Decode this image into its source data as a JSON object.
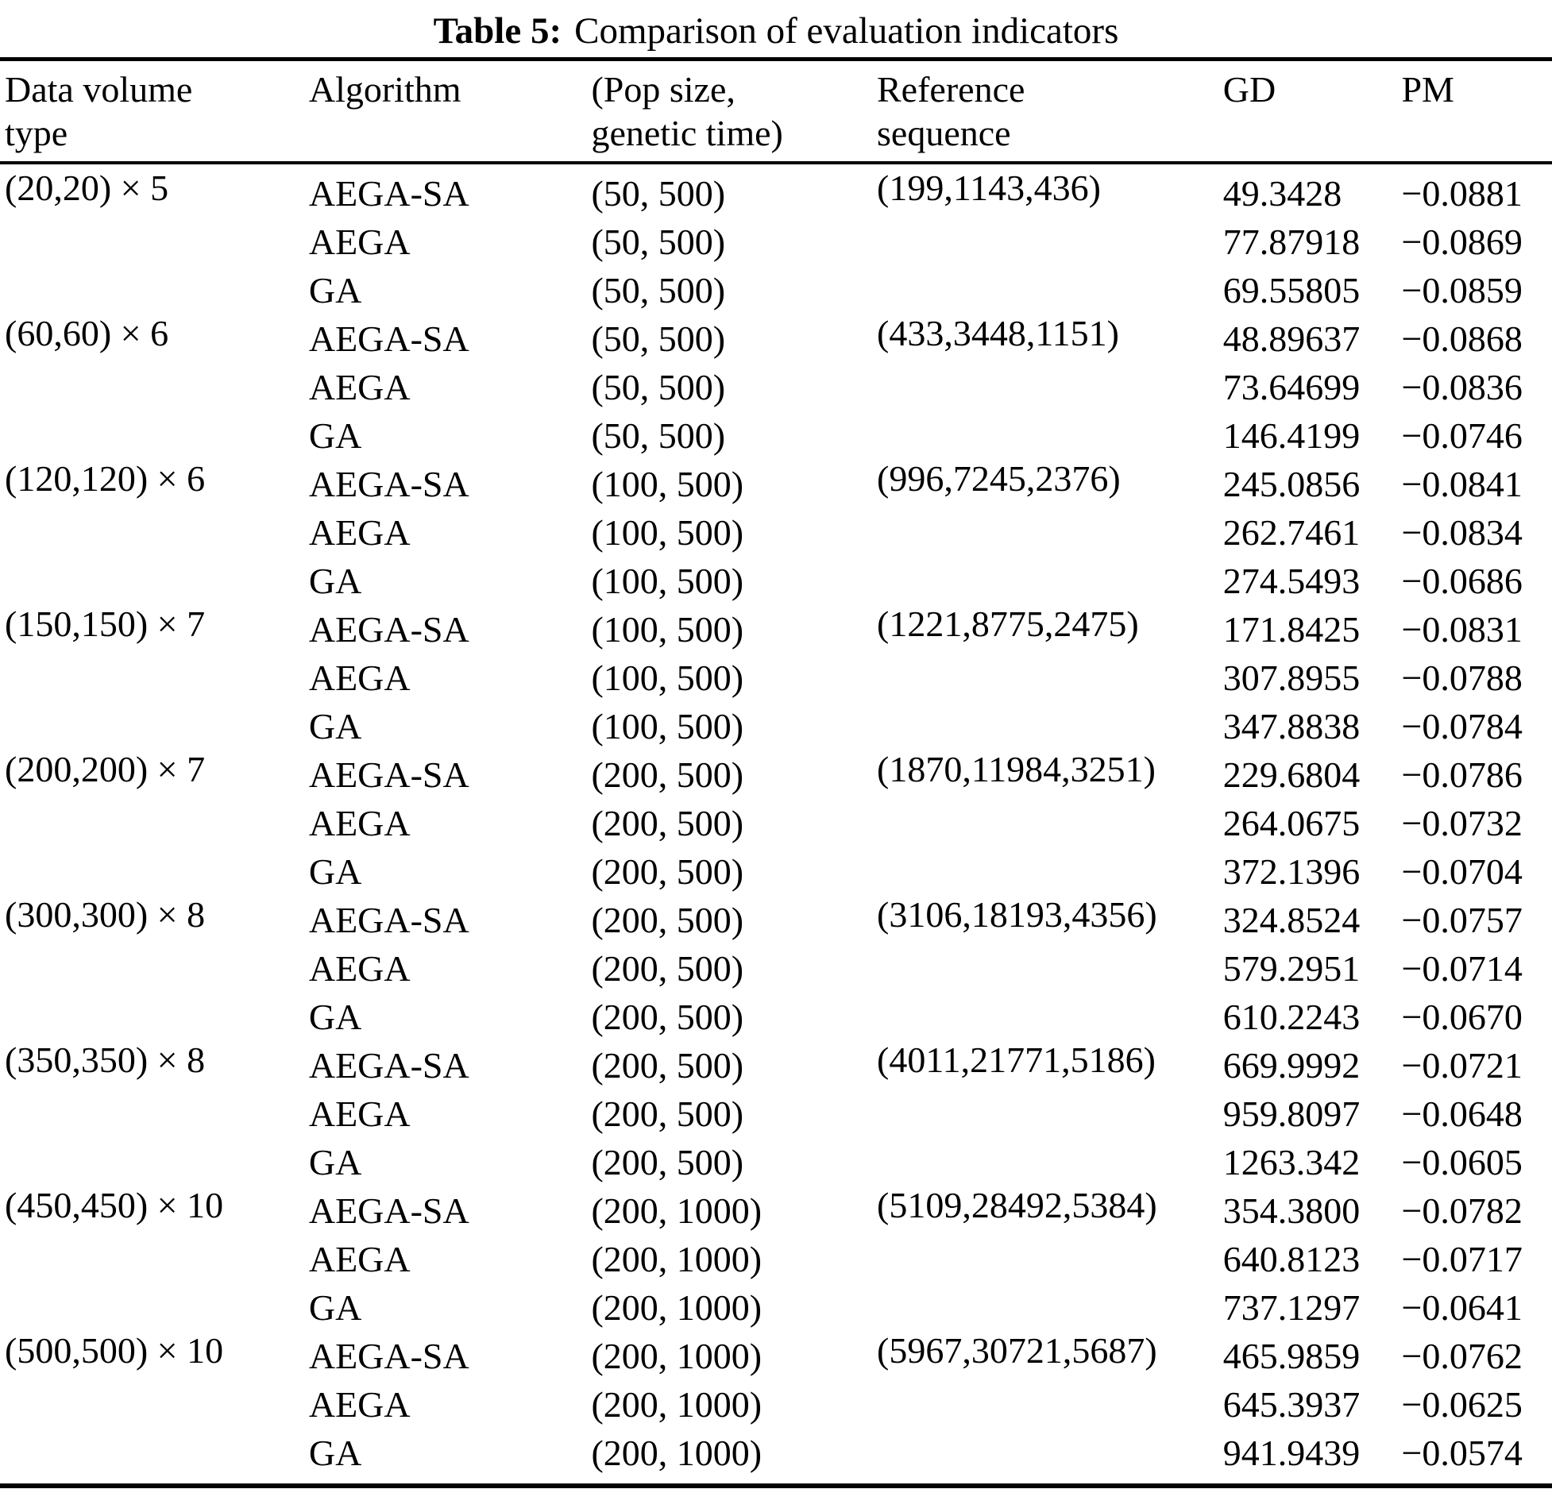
{
  "page": {
    "background": "#ffffff",
    "text_color": "#000000"
  },
  "title": {
    "label": "Table 5:",
    "text": "Comparison of evaluation indicators"
  },
  "header": {
    "data_volume": "Data volume\ntype",
    "algorithm": "Algorithm",
    "pop_size": "(Pop size,\ngenetic time)",
    "reference": "Reference\nsequence",
    "gd": "GD",
    "pm": "PM"
  },
  "rows": [
    {
      "data_volume": "(20,20) × 5",
      "algorithm": "AEGA-SA",
      "pop_size": "(50, 500)",
      "reference": "(199,1143,436)",
      "gd": "49.3428",
      "pm": "−0.0881"
    },
    {
      "data_volume": "",
      "algorithm": "AEGA",
      "pop_size": "(50, 500)",
      "reference": "",
      "gd": "77.87918",
      "pm": "−0.0869"
    },
    {
      "data_volume": "",
      "algorithm": "GA",
      "pop_size": "(50, 500)",
      "reference": "",
      "gd": "69.55805",
      "pm": "−0.0859"
    },
    {
      "data_volume": "(60,60) × 6",
      "algorithm": "AEGA-SA",
      "pop_size": "(50, 500)",
      "reference": "(433,3448,1151)",
      "gd": "48.89637",
      "pm": "−0.0868"
    },
    {
      "data_volume": "",
      "algorithm": "AEGA",
      "pop_size": "(50, 500)",
      "reference": "",
      "gd": "73.64699",
      "pm": "−0.0836"
    },
    {
      "data_volume": "",
      "algorithm": "GA",
      "pop_size": "(50, 500)",
      "reference": "",
      "gd": "146.4199",
      "pm": "−0.0746"
    },
    {
      "data_volume": "(120,120) × 6",
      "algorithm": "AEGA-SA",
      "pop_size": "(100, 500)",
      "reference": "(996,7245,2376)",
      "gd": "245.0856",
      "pm": "−0.0841"
    },
    {
      "data_volume": "",
      "algorithm": "AEGA",
      "pop_size": "(100, 500)",
      "reference": "",
      "gd": "262.7461",
      "pm": "−0.0834"
    },
    {
      "data_volume": "",
      "algorithm": "GA",
      "pop_size": "(100, 500)",
      "reference": "",
      "gd": "274.5493",
      "pm": "−0.0686"
    },
    {
      "data_volume": "(150,150) × 7",
      "algorithm": "AEGA-SA",
      "pop_size": "(100, 500)",
      "reference": "(1221,8775,2475)",
      "gd": "171.8425",
      "pm": "−0.0831"
    },
    {
      "data_volume": "",
      "algorithm": "AEGA",
      "pop_size": "(100, 500)",
      "reference": "",
      "gd": "307.8955",
      "pm": "−0.0788"
    },
    {
      "data_volume": "",
      "algorithm": "GA",
      "pop_size": "(100, 500)",
      "reference": "",
      "gd": "347.8838",
      "pm": "−0.0784"
    },
    {
      "data_volume": "(200,200) × 7",
      "algorithm": "AEGA-SA",
      "pop_size": "(200, 500)",
      "reference": "(1870,11984,3251)",
      "gd": "229.6804",
      "pm": "−0.0786"
    },
    {
      "data_volume": "",
      "algorithm": "AEGA",
      "pop_size": "(200, 500)",
      "reference": "",
      "gd": "264.0675",
      "pm": "−0.0732"
    },
    {
      "data_volume": "",
      "algorithm": "GA",
      "pop_size": "(200, 500)",
      "reference": "",
      "gd": "372.1396",
      "pm": "−0.0704"
    },
    {
      "data_volume": "(300,300) × 8",
      "algorithm": "AEGA-SA",
      "pop_size": "(200, 500)",
      "reference": "(3106,18193,4356)",
      "gd": "324.8524",
      "pm": "−0.0757"
    },
    {
      "data_volume": "",
      "algorithm": "AEGA",
      "pop_size": "(200, 500)",
      "reference": "",
      "gd": "579.2951",
      "pm": "−0.0714"
    },
    {
      "data_volume": "",
      "algorithm": "GA",
      "pop_size": "(200, 500)",
      "reference": "",
      "gd": "610.2243",
      "pm": "−0.0670"
    },
    {
      "data_volume": "(350,350) × 8",
      "algorithm": "AEGA-SA",
      "pop_size": "(200, 500)",
      "reference": "(4011,21771,5186)",
      "gd": "669.9992",
      "pm": "−0.0721"
    },
    {
      "data_volume": "",
      "algorithm": "AEGA",
      "pop_size": "(200, 500)",
      "reference": "",
      "gd": "959.8097",
      "pm": "−0.0648"
    },
    {
      "data_volume": "",
      "algorithm": "GA",
      "pop_size": "(200, 500)",
      "reference": "",
      "gd": "1263.342",
      "pm": "−0.0605"
    },
    {
      "data_volume": "(450,450) × 10",
      "algorithm": "AEGA-SA",
      "pop_size": "(200, 1000)",
      "reference": "(5109,28492,5384)",
      "gd": "354.3800",
      "pm": "−0.0782"
    },
    {
      "data_volume": "",
      "algorithm": "AEGA",
      "pop_size": "(200, 1000)",
      "reference": "",
      "gd": "640.8123",
      "pm": "−0.0717"
    },
    {
      "data_volume": "",
      "algorithm": "GA",
      "pop_size": "(200, 1000)",
      "reference": "",
      "gd": "737.1297",
      "pm": "−0.0641"
    },
    {
      "data_volume": "(500,500) × 10",
      "algorithm": "AEGA-SA",
      "pop_size": "(200, 1000)",
      "reference": "(5967,30721,5687)",
      "gd": "465.9859",
      "pm": "−0.0762"
    },
    {
      "data_volume": "",
      "algorithm": "AEGA",
      "pop_size": "(200, 1000)",
      "reference": "",
      "gd": "645.3937",
      "pm": "−0.0625"
    },
    {
      "data_volume": "",
      "algorithm": "GA",
      "pop_size": "(200, 1000)",
      "reference": "",
      "gd": "941.9439",
      "pm": "−0.0574"
    }
  ]
}
